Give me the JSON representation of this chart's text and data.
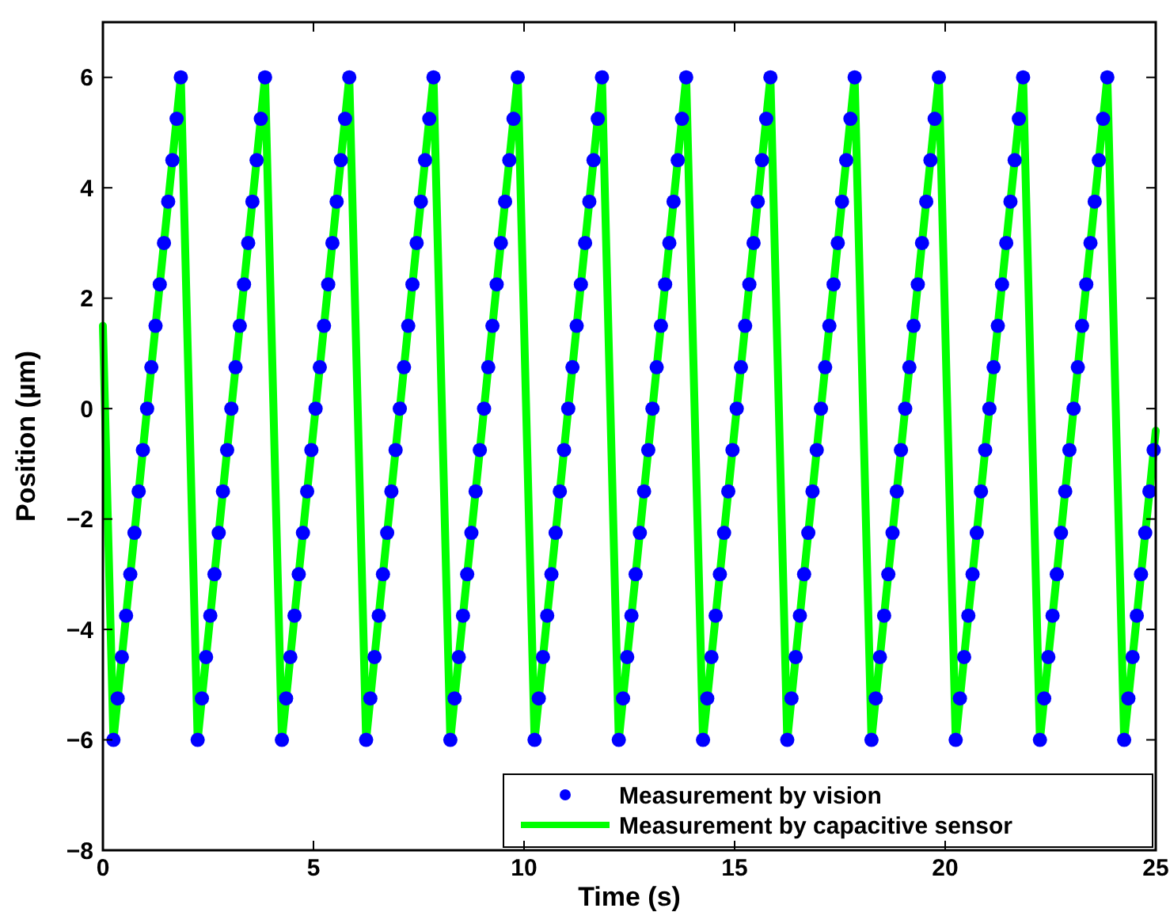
{
  "chart_data": {
    "type": "line",
    "xlabel": "Time (s)",
    "ylabel": "Position (µm)",
    "xlim": [
      0,
      25
    ],
    "xticks": [
      0,
      5,
      10,
      15,
      20,
      25
    ],
    "ylim": [
      -8,
      7
    ],
    "yticks": [
      -8,
      -6,
      -4,
      -2,
      0,
      2,
      4,
      6
    ],
    "grid": false,
    "legend": "bottom right",
    "series": [
      {
        "name": "Measurement by vision",
        "type": "scatter",
        "marker": "circle",
        "color": "#0000ff",
        "x": [
          0.25,
          0.35,
          0.45,
          0.55,
          0.65,
          0.75,
          0.85,
          0.95,
          1.05,
          1.15,
          1.25,
          1.35,
          1.45,
          1.55,
          1.65,
          1.75,
          1.85,
          2.25,
          2.35,
          2.45,
          2.55,
          2.65,
          2.75,
          2.85,
          2.95,
          3.05,
          3.15,
          3.25,
          3.35,
          3.45,
          3.55,
          3.65,
          3.75,
          3.85,
          4.25,
          4.35,
          4.45,
          4.55,
          4.65,
          4.75,
          4.85,
          4.95,
          5.05,
          5.15,
          5.25,
          5.35,
          5.45,
          5.55,
          5.65,
          5.75,
          5.85,
          6.25,
          6.35,
          6.45,
          6.55,
          6.65,
          6.75,
          6.85,
          6.95,
          7.05,
          7.15,
          7.25,
          7.35,
          7.45,
          7.55,
          7.65,
          7.75,
          7.85,
          8.25,
          8.35,
          8.45,
          8.55,
          8.65,
          8.75,
          8.85,
          8.95,
          9.05,
          9.15,
          9.25,
          9.35,
          9.45,
          9.55,
          9.65,
          9.75,
          9.85,
          10.25,
          10.35,
          10.45,
          10.55,
          10.65,
          10.75,
          10.85,
          10.95,
          11.05,
          11.15,
          11.25,
          11.35,
          11.45,
          11.55,
          11.65,
          11.75,
          11.85,
          12.25,
          12.35,
          12.45,
          12.55,
          12.65,
          12.75,
          12.85,
          12.95,
          13.05,
          13.15,
          13.25,
          13.35,
          13.45,
          13.55,
          13.65,
          13.75,
          13.85,
          14.25,
          14.35,
          14.45,
          14.55,
          14.65,
          14.75,
          14.85,
          14.95,
          15.05,
          15.15,
          15.25,
          15.35,
          15.45,
          15.55,
          15.65,
          15.75,
          15.85,
          16.25,
          16.35,
          16.45,
          16.55,
          16.65,
          16.75,
          16.85,
          16.95,
          17.05,
          17.15,
          17.25,
          17.35,
          17.45,
          17.55,
          17.65,
          17.75,
          17.85,
          18.25,
          18.35,
          18.45,
          18.55,
          18.65,
          18.75,
          18.85,
          18.95,
          19.05,
          19.15,
          19.25,
          19.35,
          19.45,
          19.55,
          19.65,
          19.75,
          19.85,
          20.25,
          20.35,
          20.45,
          20.55,
          20.65,
          20.75,
          20.85,
          20.95,
          21.05,
          21.15,
          21.25,
          21.35,
          21.45,
          21.55,
          21.65,
          21.75,
          21.85,
          22.25,
          22.35,
          22.45,
          22.55,
          22.65,
          22.75,
          22.85,
          22.95,
          23.05,
          23.15,
          23.25,
          23.35,
          23.45,
          23.55,
          23.65,
          23.75,
          23.85,
          24.25,
          24.35,
          24.45,
          24.55,
          24.65,
          24.75,
          24.85,
          24.95
        ],
        "values": [
          -6,
          -5.25,
          -4.5,
          -3.75,
          -3,
          -2.25,
          -1.5,
          -0.75,
          0,
          0.75,
          1.5,
          2.25,
          3,
          3.75,
          4.5,
          5.25,
          6,
          -6,
          -5.25,
          -4.5,
          -3.75,
          -3,
          -2.25,
          -1.5,
          -0.75,
          0,
          0.75,
          1.5,
          2.25,
          3,
          3.75,
          4.5,
          5.25,
          6,
          -6,
          -5.25,
          -4.5,
          -3.75,
          -3,
          -2.25,
          -1.5,
          -0.75,
          0,
          0.75,
          1.5,
          2.25,
          3,
          3.75,
          4.5,
          5.25,
          6,
          -6,
          -5.25,
          -4.5,
          -3.75,
          -3,
          -2.25,
          -1.5,
          -0.75,
          0,
          0.75,
          1.5,
          2.25,
          3,
          3.75,
          4.5,
          5.25,
          6,
          -6,
          -5.25,
          -4.5,
          -3.75,
          -3,
          -2.25,
          -1.5,
          -0.75,
          0,
          0.75,
          1.5,
          2.25,
          3,
          3.75,
          4.5,
          5.25,
          6,
          -6,
          -5.25,
          -4.5,
          -3.75,
          -3,
          -2.25,
          -1.5,
          -0.75,
          0,
          0.75,
          1.5,
          2.25,
          3,
          3.75,
          4.5,
          5.25,
          6,
          -6,
          -5.25,
          -4.5,
          -3.75,
          -3,
          -2.25,
          -1.5,
          -0.75,
          0,
          0.75,
          1.5,
          2.25,
          3,
          3.75,
          4.5,
          5.25,
          6,
          -6,
          -5.25,
          -4.5,
          -3.75,
          -3,
          -2.25,
          -1.5,
          -0.75,
          0,
          0.75,
          1.5,
          2.25,
          3,
          3.75,
          4.5,
          5.25,
          6,
          -6,
          -5.25,
          -4.5,
          -3.75,
          -3,
          -2.25,
          -1.5,
          -0.75,
          0,
          0.75,
          1.5,
          2.25,
          3,
          3.75,
          4.5,
          5.25,
          6,
          -6,
          -5.25,
          -4.5,
          -3.75,
          -3,
          -2.25,
          -1.5,
          -0.75,
          0,
          0.75,
          1.5,
          2.25,
          3,
          3.75,
          4.5,
          5.25,
          6,
          -6,
          -5.25,
          -4.5,
          -3.75,
          -3,
          -2.25,
          -1.5,
          -0.75,
          0,
          0.75,
          1.5,
          2.25,
          3,
          3.75,
          4.5,
          5.25,
          6,
          -6,
          -5.25,
          -4.5,
          -3.75,
          -3,
          -2.25,
          -1.5,
          -0.75,
          0,
          0.75,
          1.5,
          2.25,
          3,
          3.75,
          4.5,
          5.25,
          6,
          -6,
          -5.25,
          -4.5,
          -3.75,
          -3,
          -2.25,
          -1.5,
          -0.75
        ]
      },
      {
        "name": "Measurement by capacitive sensor",
        "type": "line",
        "marker": "none",
        "line_style": "solid",
        "color": "#00ff00",
        "x": [
          0,
          0.25,
          1.85,
          2.25,
          3.85,
          4.25,
          5.85,
          6.25,
          7.85,
          8.25,
          9.85,
          10.25,
          11.85,
          12.25,
          13.85,
          14.25,
          15.85,
          16.25,
          17.85,
          18.25,
          19.85,
          20.25,
          21.85,
          22.25,
          23.85,
          24.25,
          25
        ],
        "values": [
          1.5,
          -6,
          6,
          -6,
          6,
          -6,
          6,
          -6,
          6,
          -6,
          6,
          -6,
          6,
          -6,
          6,
          -6,
          6,
          -6,
          6,
          -6,
          6,
          -6,
          6,
          -6,
          6,
          -6,
          -0.4
        ]
      }
    ]
  }
}
